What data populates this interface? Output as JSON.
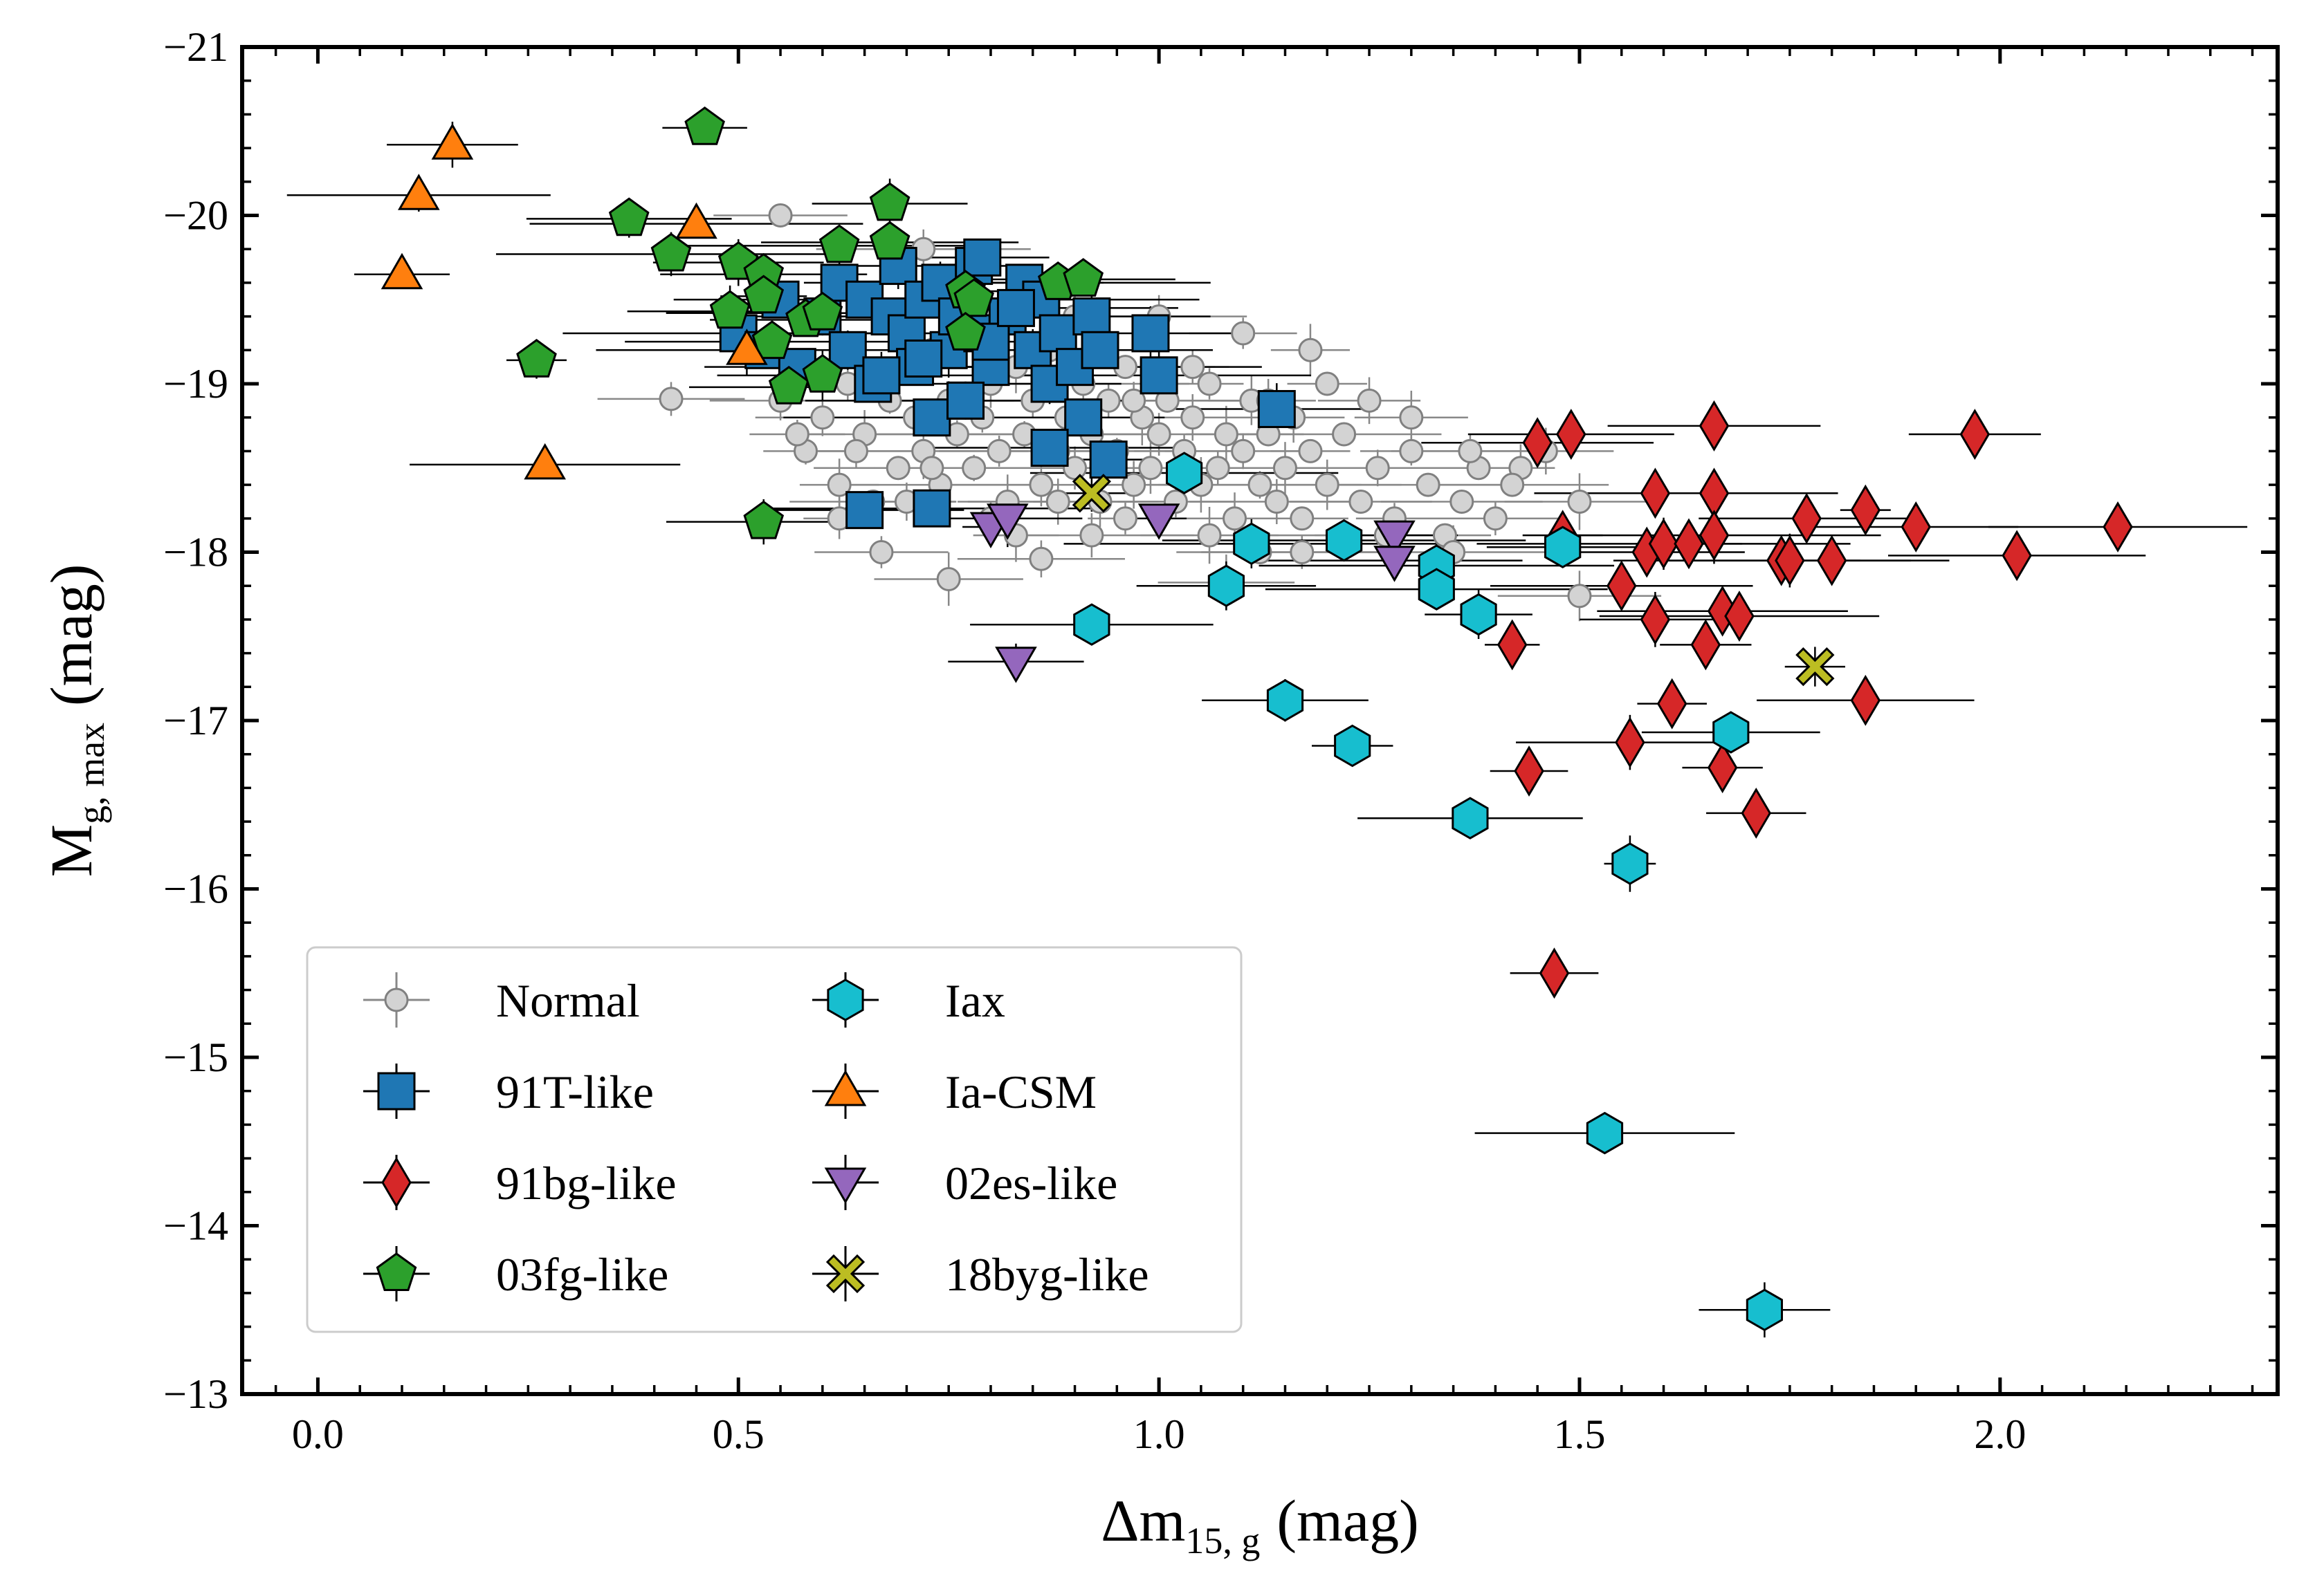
{
  "chart_data": {
    "type": "scatter",
    "title": "",
    "xlabel": {
      "main": "Δm",
      "sub": "15, g",
      "unit": "(mag)"
    },
    "ylabel": {
      "main": "M",
      "sub": "g, max",
      "unit": "(mag)"
    },
    "xlim": [
      -0.09,
      2.33
    ],
    "ylim": [
      -13,
      -21
    ],
    "xticks": [
      0.0,
      0.5,
      1.0,
      1.5,
      2.0
    ],
    "xtick_labels": [
      "0.0",
      "0.5",
      "1.0",
      "1.5",
      "2.0"
    ],
    "yticks": [
      -13,
      -14,
      -15,
      -16,
      -17,
      -18,
      -19,
      -20,
      -21
    ],
    "ytick_labels": [
      "−13",
      "−14",
      "−15",
      "−16",
      "−17",
      "−18",
      "−19",
      "−20",
      "−21"
    ],
    "grid": false,
    "legend_placement": "lower-left",
    "series": [
      {
        "name": "Normal",
        "marker": "circle",
        "color": "#d3d3d3",
        "edge": "#808080",
        "points": [
          [
            0.55,
            -18.9
          ],
          [
            0.58,
            -18.6
          ],
          [
            0.6,
            -18.8
          ],
          [
            0.62,
            -18.4
          ],
          [
            0.63,
            -19.0
          ],
          [
            0.65,
            -18.7
          ],
          [
            0.66,
            -18.3
          ],
          [
            0.68,
            -18.9
          ],
          [
            0.69,
            -18.5
          ],
          [
            0.7,
            -19.1
          ],
          [
            0.71,
            -18.8
          ],
          [
            0.72,
            -18.6
          ],
          [
            0.73,
            -19.2
          ],
          [
            0.74,
            -18.4
          ],
          [
            0.75,
            -18.9
          ],
          [
            0.76,
            -18.7
          ],
          [
            0.77,
            -19.3
          ],
          [
            0.78,
            -18.5
          ],
          [
            0.79,
            -18.8
          ],
          [
            0.8,
            -19.0
          ],
          [
            0.81,
            -18.6
          ],
          [
            0.82,
            -18.3
          ],
          [
            0.83,
            -19.1
          ],
          [
            0.84,
            -18.7
          ],
          [
            0.85,
            -18.9
          ],
          [
            0.86,
            -18.4
          ],
          [
            0.87,
            -19.2
          ],
          [
            0.88,
            -18.6
          ],
          [
            0.89,
            -18.8
          ],
          [
            0.9,
            -18.5
          ],
          [
            0.91,
            -19.0
          ],
          [
            0.92,
            -18.7
          ],
          [
            0.93,
            -18.3
          ],
          [
            0.94,
            -18.9
          ],
          [
            0.95,
            -18.6
          ],
          [
            0.96,
            -19.1
          ],
          [
            0.97,
            -18.4
          ],
          [
            0.98,
            -18.8
          ],
          [
            0.99,
            -18.5
          ],
          [
            1.0,
            -18.7
          ],
          [
            1.01,
            -18.9
          ],
          [
            1.02,
            -18.3
          ],
          [
            1.03,
            -18.6
          ],
          [
            1.04,
            -18.8
          ],
          [
            1.05,
            -18.4
          ],
          [
            1.06,
            -19.0
          ],
          [
            1.07,
            -18.5
          ],
          [
            1.08,
            -18.7
          ],
          [
            1.09,
            -18.2
          ],
          [
            1.1,
            -18.6
          ],
          [
            1.11,
            -18.9
          ],
          [
            1.12,
            -18.4
          ],
          [
            1.13,
            -18.7
          ],
          [
            1.14,
            -18.3
          ],
          [
            1.15,
            -18.5
          ],
          [
            1.16,
            -18.8
          ],
          [
            1.17,
            -18.2
          ],
          [
            1.18,
            -18.6
          ],
          [
            1.2,
            -18.4
          ],
          [
            1.22,
            -18.7
          ],
          [
            1.24,
            -18.3
          ],
          [
            1.26,
            -18.5
          ],
          [
            1.28,
            -18.2
          ],
          [
            1.3,
            -18.6
          ],
          [
            1.32,
            -18.4
          ],
          [
            1.34,
            -18.1
          ],
          [
            1.36,
            -18.3
          ],
          [
            1.38,
            -18.5
          ],
          [
            1.4,
            -18.2
          ],
          [
            1.43,
            -18.5
          ],
          [
            1.46,
            -18.6
          ],
          [
            0.9,
            -19.4
          ],
          [
            1.0,
            -19.4
          ],
          [
            1.1,
            -19.3
          ],
          [
            1.18,
            -19.2
          ],
          [
            1.2,
            -19.0
          ],
          [
            0.57,
            -18.7
          ],
          [
            0.62,
            -18.2
          ],
          [
            0.67,
            -18.0
          ],
          [
            0.75,
            -17.84
          ],
          [
            0.42,
            -18.91
          ],
          [
            0.83,
            -18.1
          ],
          [
            0.86,
            -17.96
          ],
          [
            0.92,
            -18.1
          ],
          [
            1.08,
            -17.82
          ],
          [
            1.17,
            -18.0
          ],
          [
            1.27,
            -18.1
          ],
          [
            1.35,
            -18.0
          ],
          [
            1.5,
            -18.3
          ],
          [
            1.5,
            -17.74
          ],
          [
            0.55,
            -20.0
          ],
          [
            0.72,
            -19.8
          ],
          [
            0.78,
            -19.6
          ],
          [
            0.84,
            -19.5
          ],
          [
            0.8,
            -18.2
          ],
          [
            0.88,
            -18.3
          ],
          [
            0.96,
            -18.2
          ],
          [
            1.06,
            -18.1
          ],
          [
            1.12,
            -18.0
          ],
          [
            1.22,
            -18.1
          ],
          [
            0.7,
            -18.3
          ],
          [
            0.73,
            -18.5
          ],
          [
            0.97,
            -18.9
          ],
          [
            1.04,
            -19.1
          ],
          [
            1.13,
            -18.9
          ],
          [
            1.25,
            -18.9
          ],
          [
            1.3,
            -18.8
          ],
          [
            1.37,
            -18.6
          ],
          [
            1.42,
            -18.4
          ],
          [
            0.64,
            -18.6
          ]
        ]
      },
      {
        "name": "91T-like",
        "marker": "square",
        "color": "#1f77b4",
        "points": [
          [
            0.5,
            -19.3
          ],
          [
            0.53,
            -19.2
          ],
          [
            0.55,
            -19.5
          ],
          [
            0.57,
            -19.1
          ],
          [
            0.6,
            -19.4
          ],
          [
            0.62,
            -19.6
          ],
          [
            0.63,
            -19.2
          ],
          [
            0.65,
            -19.5
          ],
          [
            0.66,
            -19.0
          ],
          [
            0.68,
            -19.4
          ],
          [
            0.69,
            -19.7
          ],
          [
            0.7,
            -19.3
          ],
          [
            0.71,
            -19.1
          ],
          [
            0.72,
            -19.5
          ],
          [
            0.73,
            -18.8
          ],
          [
            0.74,
            -19.6
          ],
          [
            0.75,
            -19.2
          ],
          [
            0.76,
            -19.4
          ],
          [
            0.77,
            -18.9
          ],
          [
            0.78,
            -19.7
          ],
          [
            0.79,
            -19.3
          ],
          [
            0.8,
            -19.1
          ],
          [
            0.82,
            -19.4
          ],
          [
            0.84,
            -19.6
          ],
          [
            0.85,
            -19.2
          ],
          [
            0.86,
            -19.5
          ],
          [
            0.87,
            -19.0
          ],
          [
            0.88,
            -19.3
          ],
          [
            0.9,
            -19.1
          ],
          [
            0.91,
            -18.8
          ],
          [
            0.92,
            -19.4
          ],
          [
            0.93,
            -19.2
          ],
          [
            0.67,
            -19.05
          ],
          [
            0.77,
            -18.9
          ],
          [
            0.87,
            -18.62
          ],
          [
            0.94,
            -18.55
          ],
          [
            0.99,
            -19.3
          ],
          [
            1.0,
            -19.05
          ],
          [
            1.14,
            -18.85
          ],
          [
            0.65,
            -18.25
          ],
          [
            0.73,
            -18.26
          ],
          [
            0.79,
            -19.75
          ],
          [
            0.72,
            -19.15
          ],
          [
            0.8,
            -19.25
          ],
          [
            0.83,
            -19.45
          ]
        ]
      },
      {
        "name": "91bg-like",
        "marker": "diamond",
        "color": "#d62728",
        "points": [
          [
            1.45,
            -18.65
          ],
          [
            1.49,
            -18.7
          ],
          [
            1.66,
            -18.75
          ],
          [
            1.97,
            -18.7
          ],
          [
            1.59,
            -18.35
          ],
          [
            1.66,
            -18.35
          ],
          [
            1.77,
            -18.2
          ],
          [
            1.84,
            -18.25
          ],
          [
            1.9,
            -18.15
          ],
          [
            2.14,
            -18.15
          ],
          [
            1.48,
            -18.1
          ],
          [
            1.58,
            -18.0
          ],
          [
            1.6,
            -18.05
          ],
          [
            1.63,
            -18.05
          ],
          [
            1.66,
            -18.1
          ],
          [
            1.74,
            -17.95
          ],
          [
            1.75,
            -17.95
          ],
          [
            1.8,
            -17.95
          ],
          [
            2.02,
            -17.98
          ],
          [
            1.55,
            -17.8
          ],
          [
            1.59,
            -17.6
          ],
          [
            1.67,
            -17.65
          ],
          [
            1.69,
            -17.62
          ],
          [
            1.42,
            -17.45
          ],
          [
            1.65,
            -17.45
          ],
          [
            1.61,
            -17.1
          ],
          [
            1.84,
            -17.12
          ],
          [
            1.56,
            -16.87
          ],
          [
            1.67,
            -16.72
          ],
          [
            1.44,
            -16.7
          ],
          [
            1.71,
            -16.45
          ],
          [
            1.47,
            -15.5
          ]
        ]
      },
      {
        "name": "03fg-like",
        "marker": "pentagon",
        "color": "#2ca02c",
        "points": [
          [
            0.46,
            -20.52
          ],
          [
            0.68,
            -20.07
          ],
          [
            0.37,
            -19.98
          ],
          [
            0.42,
            -19.77
          ],
          [
            0.5,
            -19.72
          ],
          [
            0.53,
            -19.65
          ],
          [
            0.62,
            -19.82
          ],
          [
            0.68,
            -19.84
          ],
          [
            0.49,
            -19.43
          ],
          [
            0.53,
            -19.52
          ],
          [
            0.58,
            -19.38
          ],
          [
            0.6,
            -19.42
          ],
          [
            0.77,
            -19.55
          ],
          [
            0.78,
            -19.5
          ],
          [
            0.88,
            -19.6
          ],
          [
            0.91,
            -19.62
          ],
          [
            0.77,
            -19.3
          ],
          [
            0.54,
            -19.25
          ],
          [
            0.26,
            -19.14
          ],
          [
            0.56,
            -18.98
          ],
          [
            0.6,
            -19.05
          ],
          [
            0.53,
            -18.18
          ]
        ]
      },
      {
        "name": "Iax",
        "marker": "hexagon",
        "color": "#17becf",
        "points": [
          [
            1.03,
            -18.47
          ],
          [
            1.11,
            -18.05
          ],
          [
            1.22,
            -18.07
          ],
          [
            1.48,
            -18.03
          ],
          [
            1.33,
            -17.92
          ],
          [
            1.33,
            -17.78
          ],
          [
            1.08,
            -17.8
          ],
          [
            1.38,
            -17.63
          ],
          [
            0.92,
            -17.57
          ],
          [
            1.15,
            -17.12
          ],
          [
            1.23,
            -16.85
          ],
          [
            1.68,
            -16.93
          ],
          [
            1.37,
            -16.42
          ],
          [
            1.56,
            -16.15
          ],
          [
            1.53,
            -14.55
          ],
          [
            1.72,
            -13.5
          ]
        ]
      },
      {
        "name": "Ia-CSM",
        "marker": "triangle-up",
        "color": "#ff7f0e",
        "points": [
          [
            0.16,
            -20.42
          ],
          [
            0.12,
            -20.12
          ],
          [
            0.45,
            -19.95
          ],
          [
            0.1,
            -19.65
          ],
          [
            0.51,
            -19.2
          ],
          [
            0.27,
            -18.52
          ]
        ]
      },
      {
        "name": "02es-like",
        "marker": "triangle-down",
        "color": "#9467bd",
        "points": [
          [
            0.8,
            -18.15
          ],
          [
            0.82,
            -18.2
          ],
          [
            1.0,
            -18.2
          ],
          [
            1.28,
            -18.1
          ],
          [
            1.28,
            -17.95
          ],
          [
            0.83,
            -17.35
          ]
        ]
      },
      {
        "name": "18byg-like",
        "marker": "x",
        "color": "#bcbd22",
        "points": [
          [
            0.92,
            -18.35
          ],
          [
            1.78,
            -17.32
          ]
        ]
      }
    ]
  }
}
